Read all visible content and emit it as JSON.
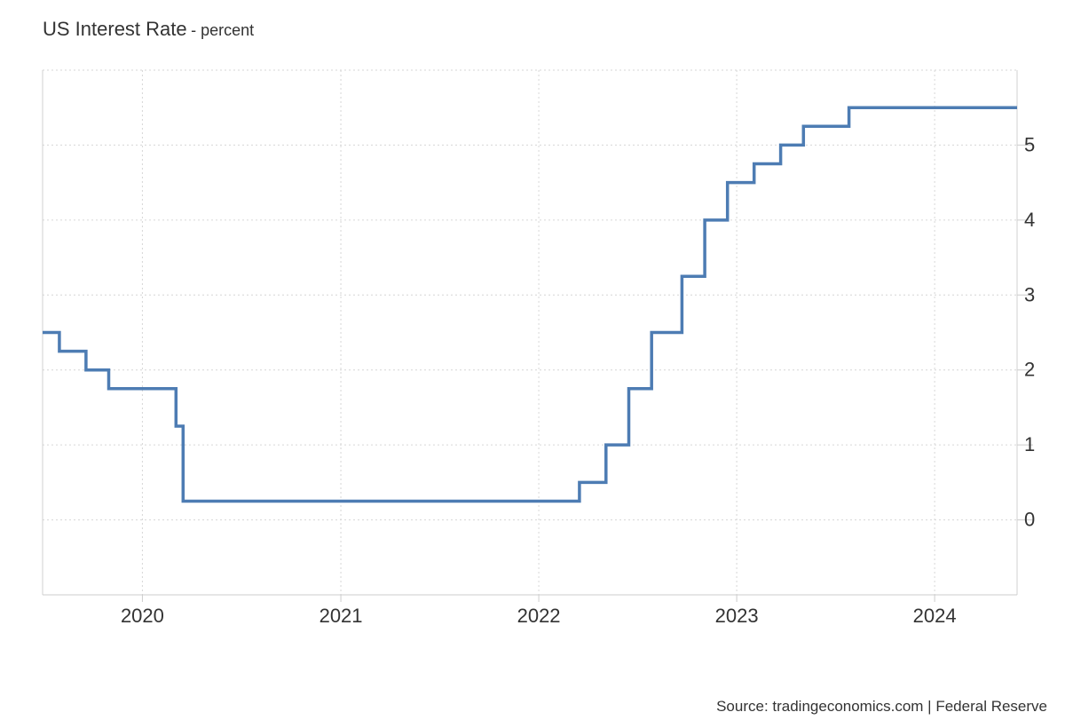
{
  "chart_data": {
    "type": "line",
    "step": true,
    "title": "US Interest Rate",
    "subtitle": "- percent",
    "xlabel": "",
    "ylabel": "",
    "source": "Source: tradingeconomics.com | Federal Reserve",
    "xlim": [
      "2019-07-01",
      "2024-06-01"
    ],
    "ylim": [
      -1,
      6
    ],
    "x_ticks": [
      "2020",
      "2021",
      "2022",
      "2023",
      "2024"
    ],
    "y_ticks": [
      "0",
      "1",
      "2",
      "3",
      "4",
      "5"
    ],
    "grid": true,
    "line_color": "#4d7cb3",
    "series": [
      {
        "x": [
          "2019-07-01",
          "2019-08-01",
          "2019-09-19",
          "2019-10-31",
          "2020-03-03",
          "2020-03-16",
          "2022-03-17",
          "2022-05-05",
          "2022-06-16",
          "2022-07-28",
          "2022-09-22",
          "2022-11-03",
          "2022-12-15",
          "2023-02-02",
          "2023-03-23",
          "2023-05-04",
          "2023-07-27",
          "2024-06-01"
        ],
        "values": [
          2.5,
          2.25,
          2.0,
          1.75,
          1.25,
          0.25,
          0.5,
          1.0,
          1.75,
          2.5,
          3.25,
          4.0,
          4.5,
          4.75,
          5.0,
          5.25,
          5.5,
          5.5
        ]
      }
    ]
  }
}
